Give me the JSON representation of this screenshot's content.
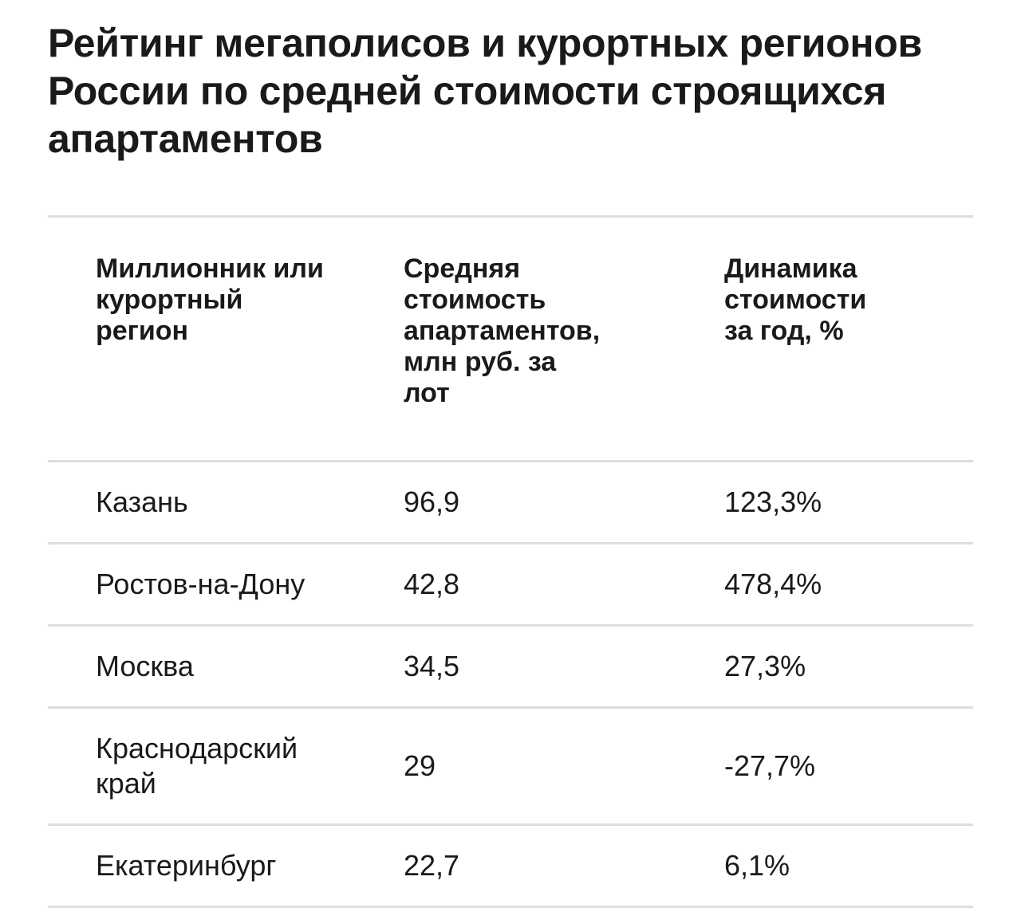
{
  "header": {
    "title": "Рейтинг мегаполисов и курортных регионов России по средней стоимости строящихся апартаментов"
  },
  "table": {
    "columns": [
      "Миллионник или\nкурортный\nрегион",
      "Средняя\nстоимость\nапартаментов,\nмлн руб. за\nлот",
      "Динамика\nстоимости\nза год, %"
    ],
    "rows": [
      [
        "Казань",
        "96,9",
        "123,3%"
      ],
      [
        "Ростов-на-Дону",
        "42,8",
        "478,4%"
      ],
      [
        "Москва",
        "34,5",
        "27,3%"
      ],
      [
        "Краснодарский\nкрай",
        "29",
        "-27,7%"
      ],
      [
        "Екатеринбург",
        "22,7",
        "6,1%"
      ]
    ]
  }
}
